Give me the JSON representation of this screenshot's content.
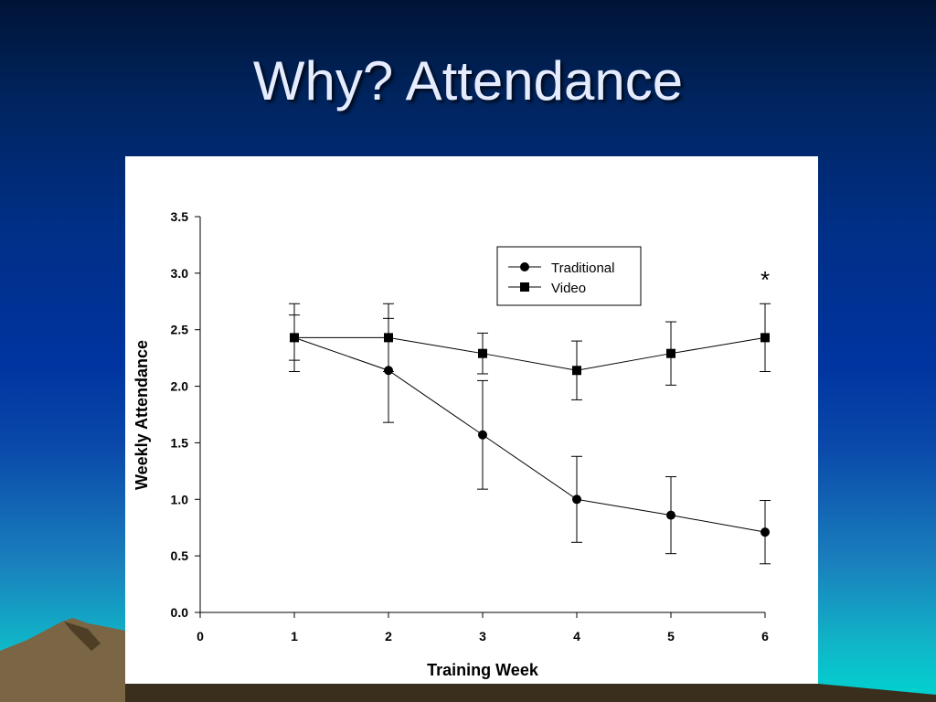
{
  "slide": {
    "title": "Why? Attendance",
    "colors": {
      "title_text": "#e6ecff",
      "chart_background": "#ffffff",
      "ink": "#000000"
    }
  },
  "chart_data": {
    "type": "line",
    "title": "",
    "xlabel": "Training Week",
    "ylabel": "Weekly Attendance",
    "xlim": [
      0,
      6
    ],
    "ylim": [
      0,
      3.5
    ],
    "x_ticks": [
      "0",
      "1",
      "2",
      "3",
      "4",
      "5",
      "6"
    ],
    "y_ticks": [
      "0.0",
      "0.5",
      "1.0",
      "1.5",
      "2.0",
      "2.5",
      "3.0",
      "3.5"
    ],
    "grid": false,
    "legend_position": "top-right",
    "series": [
      {
        "name": "Traditional",
        "marker": "circle",
        "x": [
          1,
          2,
          3,
          4,
          5,
          6
        ],
        "y": [
          2.43,
          2.14,
          1.57,
          1.0,
          0.86,
          0.71
        ],
        "error": [
          0.2,
          0.46,
          0.48,
          0.38,
          0.34,
          0.28
        ]
      },
      {
        "name": "Video",
        "marker": "square",
        "x": [
          1,
          2,
          3,
          4,
          5,
          6
        ],
        "y": [
          2.43,
          2.43,
          2.29,
          2.14,
          2.29,
          2.43
        ],
        "error": [
          0.3,
          0.3,
          0.18,
          0.26,
          0.28,
          0.3
        ]
      }
    ],
    "annotations": [
      {
        "text": "*",
        "x": 6,
        "y": 2.95
      }
    ]
  }
}
